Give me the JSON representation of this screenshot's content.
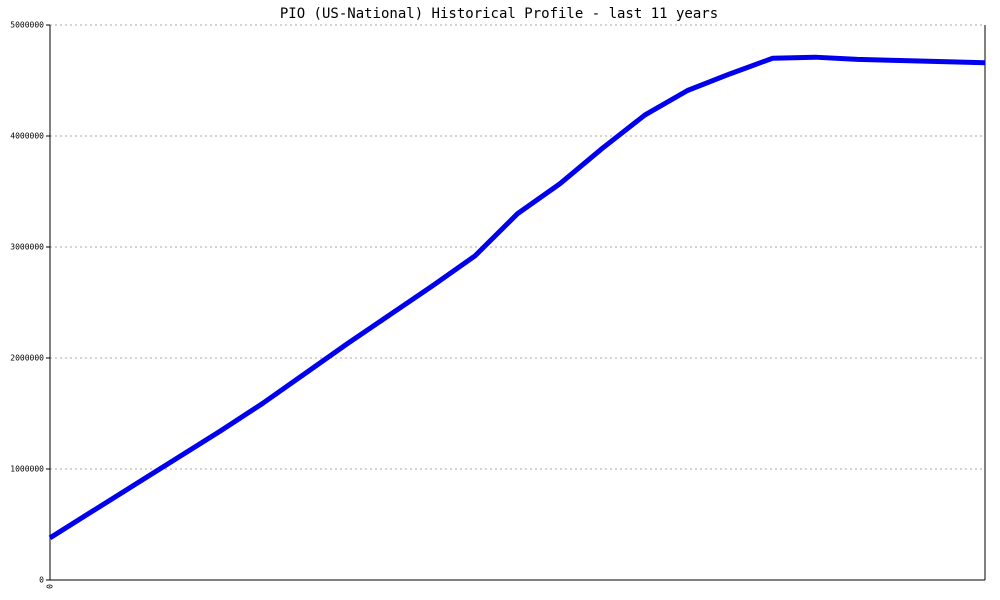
{
  "chart_data": {
    "type": "line",
    "title": "PIO (US-National) Historical Profile - last 11 years",
    "categories": [
      "0",
      null,
      null,
      null,
      null,
      null,
      null,
      null,
      null,
      null,
      null,
      null,
      null,
      null,
      null,
      null,
      null,
      null,
      null,
      null,
      null,
      null,
      null
    ],
    "series": [
      {
        "color": "#0000ee",
        "values": [
          380000,
          620000,
          860000,
          1100000,
          1340000,
          1590000,
          1860000,
          2130000,
          2390000,
          2650000,
          2920000,
          3300000,
          3570000,
          3890000,
          4190000,
          4410000,
          4560000,
          4700000,
          4710000,
          4690000,
          4680000,
          4670000,
          4660000
        ]
      }
    ],
    "ylim": [
      0,
      5000000
    ],
    "yticks": [
      0,
      1000000,
      2000000,
      3000000,
      4000000,
      5000000
    ],
    "grid": true
  }
}
